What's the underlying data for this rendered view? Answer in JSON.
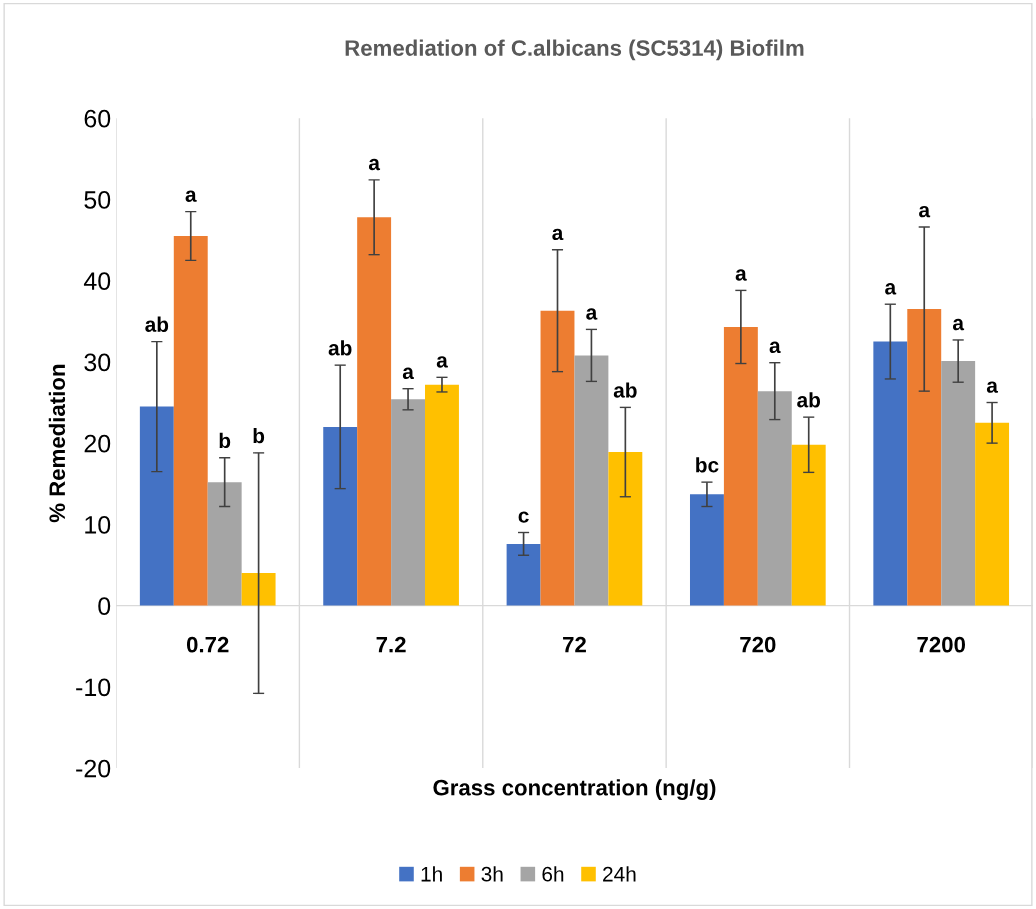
{
  "chart_data": {
    "type": "bar",
    "title": "Remediation of C.albicans (SC5314) Biofilm",
    "xlabel": "Grass concentration (ng/g)",
    "ylabel": "% Remediation",
    "categories": [
      "0.72",
      "7.2",
      "72",
      "720",
      "7200"
    ],
    "series": [
      {
        "name": "1h",
        "color": "#4472c4",
        "values": [
          24.5,
          22.0,
          7.6,
          13.7,
          32.5
        ],
        "errors": [
          8.0,
          7.6,
          1.4,
          1.5,
          4.6
        ]
      },
      {
        "name": "3h",
        "color": "#ed7d31",
        "values": [
          45.5,
          47.8,
          36.3,
          34.3,
          36.5
        ],
        "errors": [
          3.0,
          4.6,
          7.5,
          4.5,
          10.1
        ]
      },
      {
        "name": "6h",
        "color": "#a5a5a5",
        "values": [
          15.2,
          25.4,
          30.8,
          26.4,
          30.1
        ],
        "errors": [
          3.0,
          1.3,
          3.2,
          3.5,
          2.6
        ]
      },
      {
        "name": "24h",
        "color": "#ffc000",
        "values": [
          4.0,
          27.2,
          18.9,
          19.8,
          22.5
        ],
        "errors": [
          14.8,
          0.9,
          5.5,
          3.4,
          2.5
        ]
      }
    ],
    "ylim": [
      -20,
      60
    ],
    "yticks": [
      -20,
      -10,
      0,
      10,
      20,
      30,
      40,
      50,
      60
    ],
    "grid": "x",
    "legend": "bottom",
    "annotations": [
      "ab",
      "a",
      "b",
      "b",
      "ab",
      "a",
      "a",
      "a",
      "c",
      "a",
      "a",
      "ab",
      "bc",
      "a",
      "a",
      "ab",
      "a",
      "a",
      "a",
      "a"
    ]
  }
}
